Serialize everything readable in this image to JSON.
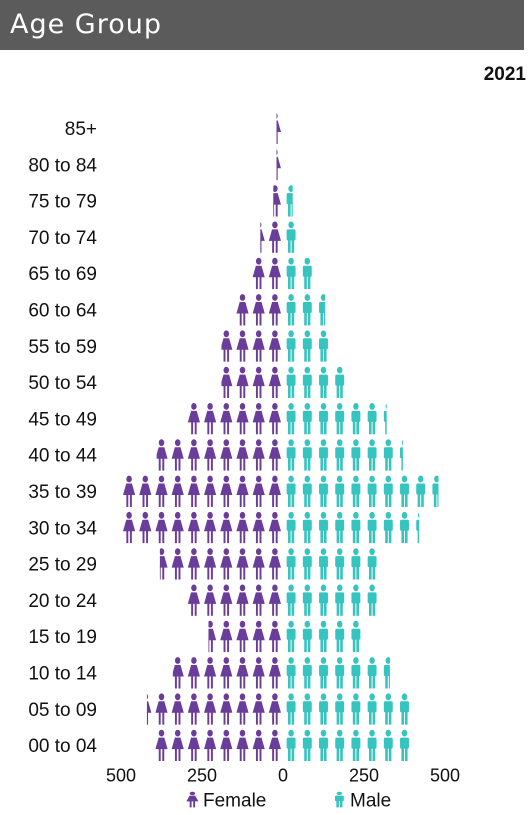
{
  "header": {
    "title": "Age Group"
  },
  "year": "2021",
  "colors": {
    "female": "#6a3d9a",
    "male": "#35c4bf"
  },
  "chart_data": {
    "type": "bar",
    "orientation": "horizontal",
    "style": "pictograph",
    "unit_per_icon": 50,
    "categories": [
      "85+",
      "80 to 84",
      "75 to 79",
      "70 to 74",
      "65 to 69",
      "60 to 64",
      "55 to 59",
      "50 to 54",
      "45 to 49",
      "40 to 44",
      "35 to 39",
      "30 to 34",
      "25 to 29",
      "20 to 24",
      "15 to 19",
      "10 to 14",
      "05 to 09",
      "00 to 04"
    ],
    "series": [
      {
        "name": "Female",
        "values": [
          20,
          20,
          30,
          70,
          100,
          150,
          190,
          190,
          300,
          390,
          500,
          500,
          380,
          300,
          230,
          340,
          420,
          400
        ]
      },
      {
        "name": "Male",
        "values": [
          10,
          10,
          30,
          40,
          100,
          130,
          160,
          200,
          320,
          370,
          480,
          420,
          310,
          290,
          240,
          330,
          410,
          390
        ]
      }
    ],
    "xticks": [
      "500",
      "250",
      "0",
      "250",
      "500"
    ],
    "xlim": [
      -500,
      500
    ],
    "legend": [
      "Female",
      "Male"
    ],
    "legend_position": "bottom"
  }
}
